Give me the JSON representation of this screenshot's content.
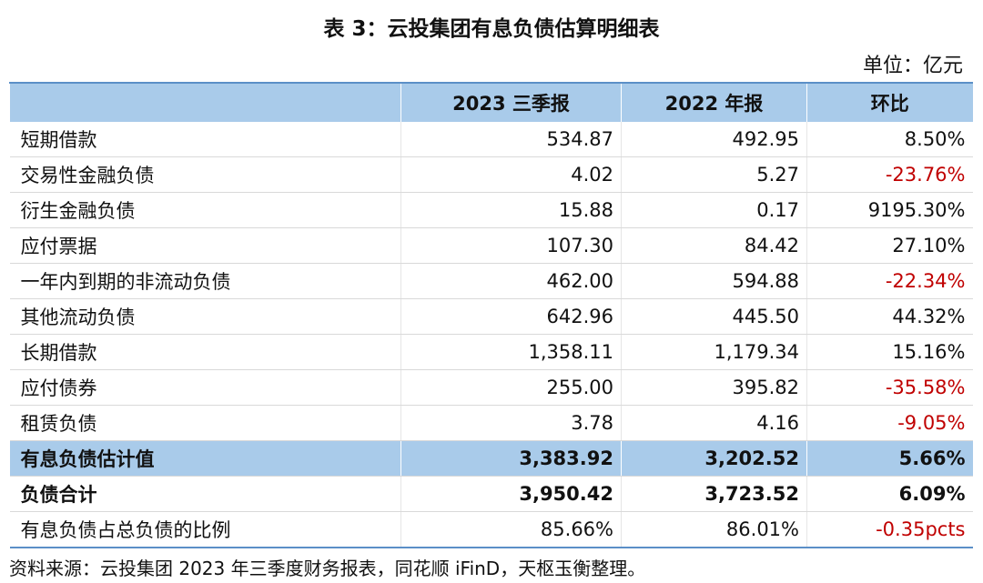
{
  "header": {
    "title": "表 3：云投集团有息负债估算明细表",
    "unit": "单位：亿元"
  },
  "table": {
    "columns": [
      "",
      "2023 三季报",
      "2022 年报",
      "环比"
    ],
    "rows": [
      [
        "短期借款",
        "534.87",
        "492.95",
        "8.50%"
      ],
      [
        "交易性金融负债",
        "4.02",
        "5.27",
        "-23.76%"
      ],
      [
        "衍生金融负债",
        "15.88",
        "0.17",
        "9195.30%"
      ],
      [
        "应付票据",
        "107.30",
        "84.42",
        "27.10%"
      ],
      [
        "一年内到期的非流动负债",
        "462.00",
        "594.88",
        "-22.34%"
      ],
      [
        "其他流动负债",
        "642.96",
        "445.50",
        "44.32%"
      ],
      [
        "长期借款",
        "1,358.11",
        "1,179.34",
        "15.16%"
      ],
      [
        "应付债券",
        "255.00",
        "395.82",
        "-35.58%"
      ],
      [
        "租赁负债",
        "3.78",
        "4.16",
        "-9.05%"
      ],
      [
        "有息负债估计值",
        "3,383.92",
        "3,202.52",
        "5.66%"
      ],
      [
        "负债合计",
        "3,950.42",
        "3,723.52",
        "6.09%"
      ],
      [
        "有息负债占总负债的比例",
        "85.66%",
        "86.01%",
        "-0.35pcts"
      ]
    ]
  },
  "footer": {
    "source": "资料来源：云投集团 2023 年三季度财务报表，同花顺 iFinD，天枢玉衡整理。"
  }
}
